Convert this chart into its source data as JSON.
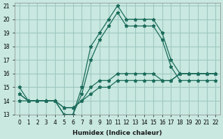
{
  "xlabel": "Humidex (Indice chaleur)",
  "ylabel": "",
  "bg_color": "#c8e8e0",
  "grid_color": "#a0c8c0",
  "line_color": "#1a6b5a",
  "xlim": [
    0,
    22
  ],
  "ylim": [
    13,
    21
  ],
  "yticks": [
    13,
    14,
    15,
    16,
    17,
    18,
    19,
    20,
    21
  ],
  "xticks": [
    0,
    1,
    2,
    3,
    4,
    5,
    6,
    7,
    8,
    9,
    10,
    11,
    12,
    13,
    14,
    15,
    16,
    17,
    18,
    19,
    20,
    21,
    22
  ],
  "lines": [
    {
      "x": [
        0,
        1,
        2,
        3,
        4,
        5,
        6,
        7,
        8,
        9,
        10,
        11,
        12,
        13,
        14,
        15,
        16,
        17,
        18,
        19,
        20,
        21,
        22
      ],
      "y": [
        15,
        14,
        14,
        14,
        14,
        13,
        13,
        15,
        18,
        19,
        20,
        21,
        20,
        20,
        20,
        20,
        19,
        17,
        16,
        16,
        16,
        16,
        16
      ]
    },
    {
      "x": [
        0,
        1,
        2,
        3,
        4,
        5,
        6,
        7,
        8,
        9,
        10,
        11,
        12,
        13,
        14,
        15,
        16,
        17,
        18,
        19,
        20,
        21,
        22
      ],
      "y": [
        14,
        14,
        14,
        14,
        14,
        13,
        13,
        14.5,
        17,
        18.5,
        19.5,
        20.5,
        19.5,
        19.5,
        19.5,
        19.5,
        18.5,
        16.5,
        15.5,
        15.5,
        15.5,
        15.5,
        15.5
      ]
    },
    {
      "x": [
        0,
        1,
        2,
        3,
        4,
        5,
        6,
        7,
        8,
        9,
        10,
        11,
        12,
        13,
        14,
        15,
        16,
        17,
        18,
        19,
        20,
        21,
        22
      ],
      "y": [
        14.5,
        14,
        14,
        14,
        14,
        13.5,
        13.5,
        14,
        15,
        15.5,
        15.5,
        16,
        16,
        16,
        16,
        16,
        15.5,
        15.5,
        16,
        16,
        16,
        16,
        16
      ]
    },
    {
      "x": [
        0,
        1,
        2,
        3,
        4,
        5,
        6,
        7,
        8,
        9,
        10,
        11,
        12,
        13,
        14,
        15,
        16,
        17,
        18,
        19,
        20,
        21,
        22
      ],
      "y": [
        14.5,
        14,
        14,
        14,
        14,
        13.5,
        13.5,
        14,
        14.5,
        15,
        15,
        15.5,
        15.5,
        15.5,
        15.5,
        15.5,
        15.5,
        15.5,
        16,
        16,
        16,
        16,
        16
      ]
    }
  ]
}
